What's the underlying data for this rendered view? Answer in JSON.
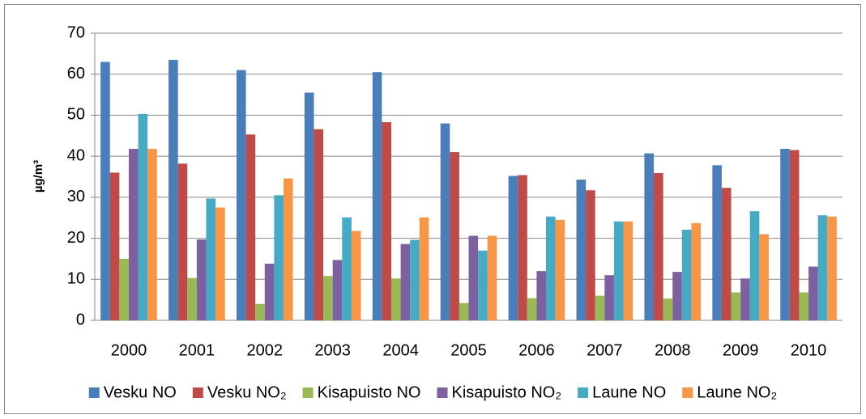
{
  "chart_data": {
    "type": "bar",
    "y_label": "µg/m³",
    "categories": [
      "2000",
      "2001",
      "2002",
      "2003",
      "2004",
      "2005",
      "2006",
      "2007",
      "2008",
      "2009",
      "2010"
    ],
    "series": [
      {
        "name": "Vesku NO",
        "color": "#4a7ebb",
        "values": [
          63,
          63.5,
          61,
          55.5,
          60.5,
          48,
          35.2,
          34.3,
          40.7,
          37.8,
          41.8
        ]
      },
      {
        "name": "Vesku NO₂",
        "color": "#be4b48",
        "values": [
          36,
          38.2,
          45.3,
          46.6,
          48.3,
          41,
          35.4,
          31.7,
          35.9,
          32.3,
          41.5
        ]
      },
      {
        "name": "Kisapuisto NO",
        "color": "#98b954",
        "values": [
          15,
          10.3,
          4,
          10.8,
          10.2,
          4.2,
          5.4,
          6,
          5.3,
          6.8,
          6.8
        ]
      },
      {
        "name": "Kisapuisto NO₂",
        "color": "#7d60a0",
        "values": [
          41.8,
          19.7,
          13.8,
          14.7,
          18.6,
          20.6,
          12,
          11,
          11.8,
          10.2,
          13.1
        ]
      },
      {
        "name": "Laune NO",
        "color": "#46aac5",
        "values": [
          50.3,
          29.7,
          30.5,
          25.1,
          19.6,
          17,
          25.3,
          24.1,
          22.1,
          26.6,
          25.6
        ]
      },
      {
        "name": "Laune NO₂",
        "color": "#f79646",
        "values": [
          41.8,
          27.5,
          34.6,
          21.8,
          25.1,
          20.6,
          24.5,
          24.1,
          23.7,
          21,
          25.3
        ]
      }
    ],
    "ylim": [
      0,
      70
    ],
    "yticks": [
      0,
      10,
      20,
      30,
      40,
      50,
      60,
      70
    ],
    "grid": true,
    "legend": "bottom"
  }
}
